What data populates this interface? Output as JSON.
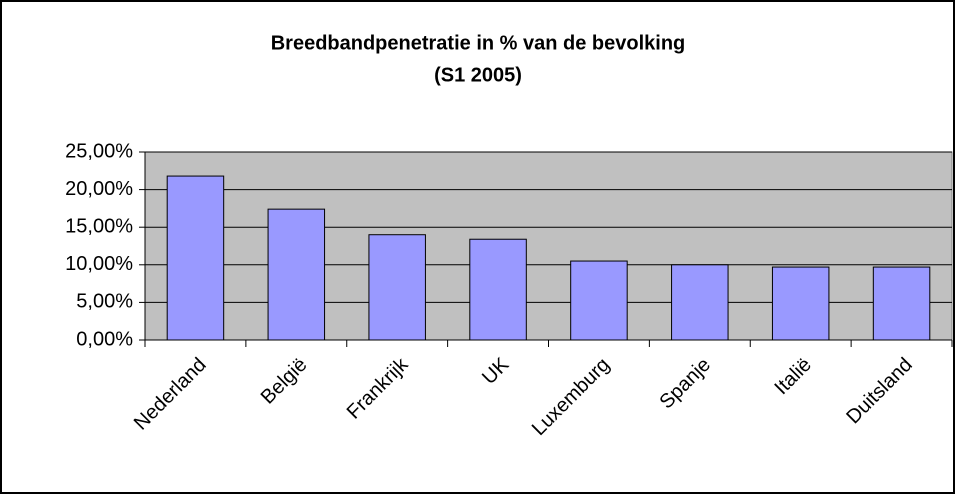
{
  "chart_data": {
    "type": "bar",
    "title": "Breedbandpenetratie in % van de bevolking",
    "subtitle": "(S1 2005)",
    "categories": [
      "Nederland",
      "België",
      "Frankrijk",
      "UK",
      "Luxemburg",
      "Spanje",
      "Italië",
      "Duitsland"
    ],
    "values": [
      21.8,
      17.4,
      14.0,
      13.4,
      10.5,
      10.0,
      9.7,
      9.7
    ],
    "color": "#9999ff",
    "ylim": [
      0,
      25
    ],
    "yticks": [
      {
        "value": 0,
        "label": "0,00%"
      },
      {
        "value": 5,
        "label": "5,00%"
      },
      {
        "value": 10,
        "label": "10,00%"
      },
      {
        "value": 15,
        "label": "15,00%"
      },
      {
        "value": 20,
        "label": "20,00%"
      },
      {
        "value": 25,
        "label": "25,00%"
      }
    ],
    "grid": true
  }
}
